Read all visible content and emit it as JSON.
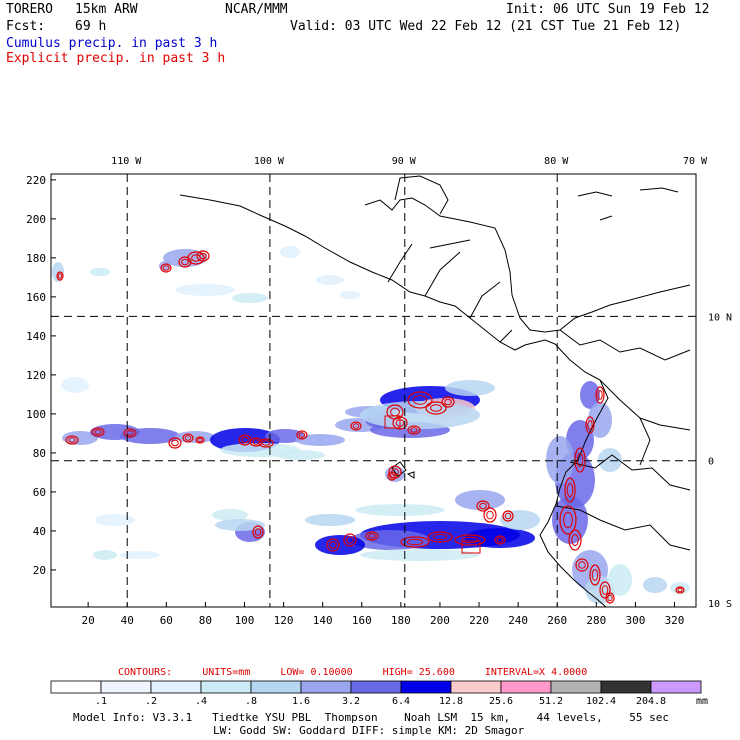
{
  "header": {
    "model": "TORERO",
    "resolution": "15km ARW",
    "center": "NCAR/MMM",
    "init": "Init: 06 UTC Sun 19 Feb 12",
    "fcst_label": "Fcst:",
    "fcst_value": "69 h",
    "valid": "Valid: 03 UTC Wed 22 Feb 12 (21 CST Tue 21 Feb 12)",
    "legend_cumulus": "Cumulus precip. in past 3 h",
    "legend_explicit": "Explicit precip. in past 3 h"
  },
  "colors": {
    "cumulus_text": "#0000cc",
    "explicit_text": "#e00000",
    "explicit_contour": "#e00000",
    "map_lines": "#000000"
  },
  "chart_data": {
    "type": "heatmap",
    "title": "Cumulus precip. in past 3 h / Explicit precip. in past 3 h",
    "x_ticks": [
      20,
      40,
      60,
      80,
      100,
      120,
      140,
      160,
      180,
      200,
      220,
      240,
      260,
      280,
      300,
      320
    ],
    "y_ticks": [
      20,
      40,
      60,
      80,
      100,
      120,
      140,
      160,
      180,
      200,
      220
    ],
    "xlim": [
      1,
      331
    ],
    "ylim": [
      1,
      223
    ],
    "lon_labels": [
      "110 W",
      "100 W",
      "90 W",
      "80 W",
      "70 W"
    ],
    "lon_grid_x": [
      40,
      113,
      182,
      260,
      331
    ],
    "lat_labels": [
      "10 N",
      "0",
      "10 S"
    ],
    "lat_grid_y": [
      150,
      76,
      3
    ],
    "grid": true,
    "contours": {
      "label": "CONTOURS:",
      "units": "UNITS=mm",
      "low": "LOW= 0.10000",
      "high": "HIGH= 25.600",
      "interval": "INTERVAL=X 4.0000"
    },
    "colorbar": {
      "values": [
        ".1",
        ".2",
        ".4",
        ".8",
        "1.6",
        "3.2",
        "6.4",
        "12.8",
        "25.6",
        "51.2",
        "102.4",
        "204.8"
      ],
      "colors": [
        "#ffffff",
        "#eef5ff",
        "#e1f1ff",
        "#ccebf5",
        "#b7d6f2",
        "#99a6ef",
        "#6a69e8",
        "#0000e8",
        "#fccccc",
        "#ff99cc",
        "#b3b3b3",
        "#333333",
        "#cc99ff"
      ],
      "units": "mm"
    },
    "precip_areas": [
      {
        "region": "north cluster",
        "x": 75,
        "y": 180,
        "level": 4
      },
      {
        "region": "west band",
        "x": 100,
        "y": 87,
        "level": 7
      },
      {
        "region": "central band",
        "x": 200,
        "y": 103,
        "level": 7
      },
      {
        "region": "south band",
        "x": 200,
        "y": 40,
        "level": 7
      },
      {
        "region": "colombia coast",
        "x": 270,
        "y": 60,
        "level": 6
      },
      {
        "region": "peru coast",
        "x": 280,
        "y": 20,
        "level": 5
      }
    ]
  },
  "footer": {
    "line1": "Model Info: V3.3.1   Tiedtke YSU PBL  Thompson    Noah LSM  15 km,    44 levels,    55 sec",
    "line2": "LW: Godd SW: Goddard DIFF: simple KM: 2D Smagor"
  }
}
